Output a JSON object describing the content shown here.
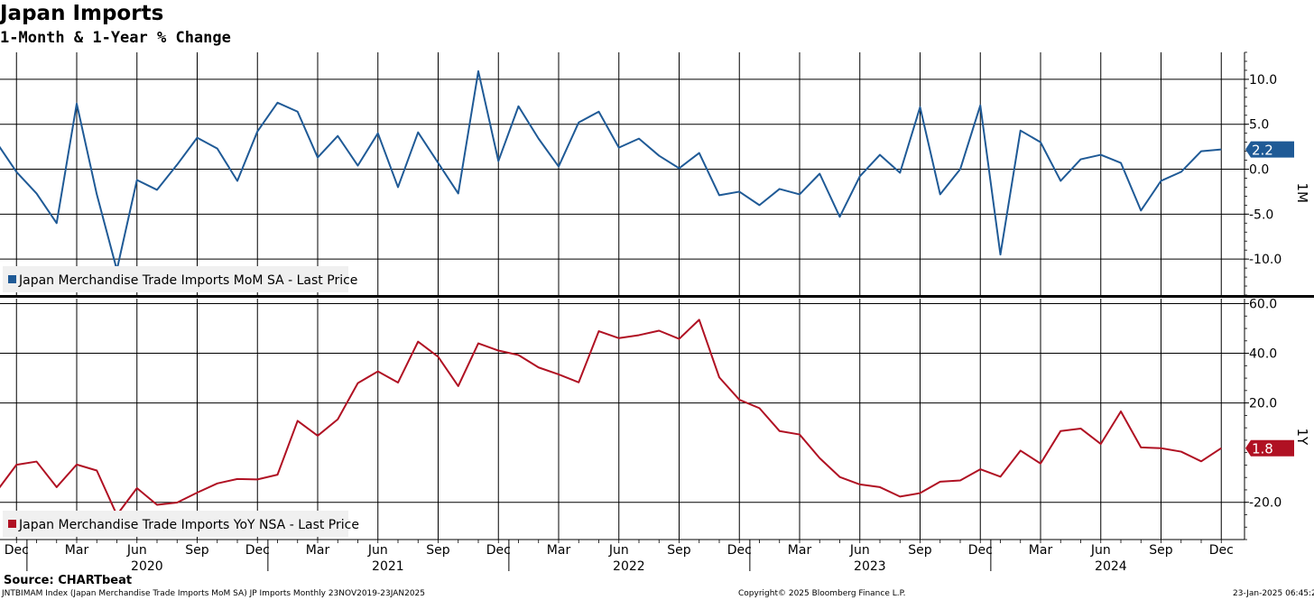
{
  "header": {
    "title": "Japan Imports",
    "subtitle": "1-Month & 1-Year % Change"
  },
  "footer": {
    "source": "Source: CHARTbeat",
    "ticker_info": "JNTBIMAM Index (Japan Merchandise Trade Imports MoM SA) JP Imports  Monthly 23NOV2019-23JAN2025",
    "copyright": "Copyright© 2025 Bloomberg Finance L.P.",
    "timestamp": "23-Jan-2025 06:45:24"
  },
  "colors": {
    "mom_series": "#1f5a96",
    "yoy_series": "#b01123",
    "grid": "#000000"
  },
  "chart_data": [
    {
      "type": "line",
      "panel": "top",
      "axis_label": "1M",
      "ylim": [
        -14,
        13
      ],
      "yticks": [
        10,
        5,
        0,
        -5,
        -10
      ],
      "ytick_labels": [
        "10.0",
        "5.0",
        "0.0",
        "-5.0",
        "-10.0"
      ],
      "x_start": "2019-11",
      "x_end": "2024-12",
      "grid": true,
      "legend": "bottom-left",
      "last_value_label": "2.2",
      "series": [
        {
          "name": "Japan Merchandise Trade Imports MoM SA - Last Price",
          "values": [
            3.0,
            -0.3,
            -2.7,
            -6.0,
            7.3,
            -2.8,
            -11.2,
            -1.2,
            -2.3,
            0.5,
            3.5,
            2.3,
            -1.3,
            4.2,
            7.4,
            6.4,
            1.3,
            3.7,
            0.4,
            4.0,
            -2.0,
            4.1,
            0.7,
            -2.7,
            10.9,
            0.9,
            7.0,
            3.4,
            0.3,
            5.2,
            6.4,
            2.4,
            3.4,
            1.5,
            0.1,
            1.8,
            -2.9,
            -2.5,
            -4.0,
            -2.2,
            -2.8,
            -0.5,
            -5.3,
            -0.8,
            1.6,
            -0.4,
            6.9,
            -2.8,
            0.0,
            7.1,
            -9.5,
            4.3,
            3.0,
            -1.3,
            1.1,
            1.6,
            0.7,
            -4.6,
            -1.3,
            -0.3,
            2.0,
            2.2
          ]
        }
      ]
    },
    {
      "type": "line",
      "panel": "bottom",
      "axis_label": "1Y",
      "ylim": [
        -35,
        62
      ],
      "yticks": [
        60,
        40,
        20,
        -20
      ],
      "ytick_labels": [
        "60.0",
        "40.0",
        "20.0",
        "-20.0"
      ],
      "x_start": "2019-11",
      "x_end": "2024-12",
      "grid": true,
      "legend": "bottom-left",
      "last_value_label": "1.8",
      "series": [
        {
          "name": "Japan Merchandise Trade Imports YoY NSA - Last Price",
          "values": [
            -15.7,
            -4.9,
            -3.6,
            -13.9,
            -4.8,
            -7.2,
            -25.1,
            -14.3,
            -21.0,
            -20.1,
            -16.1,
            -12.4,
            -10.6,
            -10.8,
            -8.9,
            12.8,
            6.8,
            13.4,
            28.0,
            32.7,
            28.2,
            44.7,
            38.6,
            26.8,
            44.0,
            41.1,
            39.3,
            34.3,
            31.5,
            28.3,
            48.9,
            46.1,
            47.3,
            49.1,
            45.8,
            53.5,
            30.3,
            21.3,
            17.9,
            8.7,
            7.3,
            -2.2,
            -9.8,
            -12.8,
            -13.9,
            -17.7,
            -16.3,
            -11.7,
            -11.2,
            -6.7,
            -9.7,
            0.8,
            -4.4,
            8.7,
            9.7,
            3.5,
            16.6,
            2.1,
            1.8,
            0.4,
            -3.5,
            1.8
          ]
        }
      ]
    }
  ],
  "x_axis": {
    "month_labels": [
      "Dec",
      "Mar",
      "Jun",
      "Sep",
      "Dec",
      "Mar",
      "Jun",
      "Sep",
      "Dec",
      "Mar",
      "Jun",
      "Sep",
      "Dec",
      "Mar",
      "Jun",
      "Sep",
      "Dec",
      "Mar",
      "Jun",
      "Sep",
      "Dec"
    ],
    "year_labels": [
      "2020",
      "2021",
      "2022",
      "2023",
      "2024"
    ]
  }
}
